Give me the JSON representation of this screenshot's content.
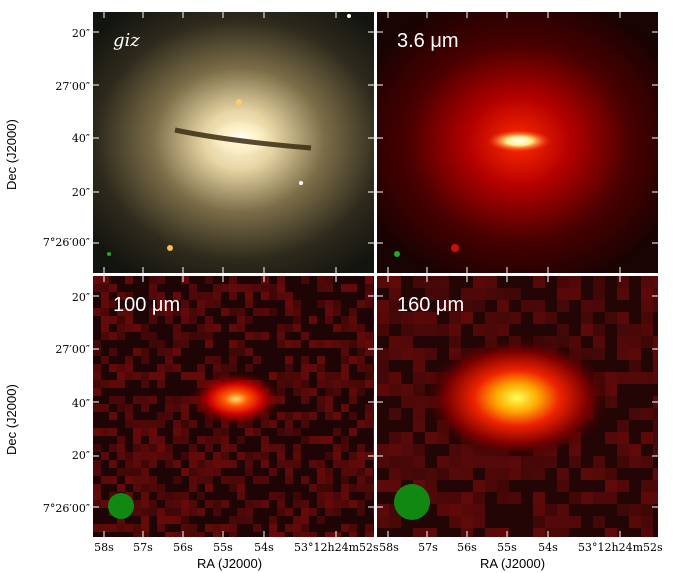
{
  "panels": {
    "top_left": {
      "label": "giz"
    },
    "top_right": {
      "label": "3.6 μm"
    },
    "bottom_left": {
      "label": "100 μm"
    },
    "bottom_right": {
      "label": "160 μm"
    }
  },
  "axes": {
    "y_label": "Dec (J2000)",
    "x_label": "RA (J2000)",
    "y_ticks": [
      "20″",
      "27′00″",
      "40″",
      "20″",
      "7°26′00″"
    ],
    "x_ticks": [
      "58s",
      "57s",
      "56s",
      "55s",
      "54s",
      "53°12h24m52s"
    ]
  },
  "colors": {
    "optical_core": "#fff4d6",
    "ir_hot": "#ffff66",
    "ir_red": "#cc0000",
    "beam": "#118811"
  }
}
